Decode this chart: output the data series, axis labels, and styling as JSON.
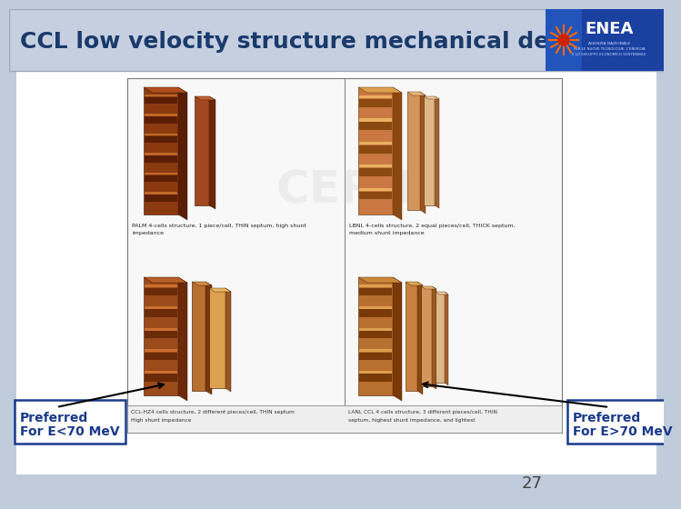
{
  "title": "CCL low velocity structure mechanical design",
  "title_color": "#1a3a6b",
  "title_fontsize": 18,
  "header_bg": "#c5cfe0",
  "slide_bg": "#c0ccdc",
  "content_bg": "#ffffff",
  "page_number": "27",
  "left_label_line1": "Preferred",
  "left_label_line2": "For E<70 MeV",
  "right_label_line1": "Preferred",
  "right_label_line2": "For E>70 MeV",
  "label_box_bg": "#ffffff",
  "label_border_color": "#1a3a8a",
  "label_text_color": "#1a3a8a",
  "label_fontsize": 10,
  "arrow_color": "#000000",
  "enea_bg_left": "#2255aa",
  "enea_bg_right": "#1a3a8a",
  "caption_tl_1": "PALM 4-cells structure, 1 piece/cell, THIN septum, high shunt",
  "caption_tl_2": "impedance",
  "caption_tr_1": "LBNL 4-cells structure, 2 equal pieces/cell, THICK septum,",
  "caption_tr_2": "medium shunt impedance",
  "caption_bl_1": "CCL-HZ4 cells structure, 2 different pieces/cell, THIN septum",
  "caption_bl_2": "High shunt impedance",
  "caption_br_1": "LANL CCL 4 cells structure, 3 different pieces/cell, THIN",
  "caption_br_2": "septum, highest shunt impedance, and lightest",
  "dark_c1": "#6b2800",
  "dark_c2": "#8b3a0a",
  "dark_c3": "#b05a20",
  "dark_c4": "#c87840",
  "dark_c5": "#e8a060",
  "med_c1": "#8b4010",
  "med_c2": "#b06030",
  "med_c3": "#cc8040",
  "med_c4": "#e0a060",
  "med_c5": "#f0c080",
  "light_c1": "#a05020",
  "light_c2": "#c07030",
  "light_c3": "#d89050",
  "light_c4": "#ecb870",
  "light_c5": "#f5d090"
}
